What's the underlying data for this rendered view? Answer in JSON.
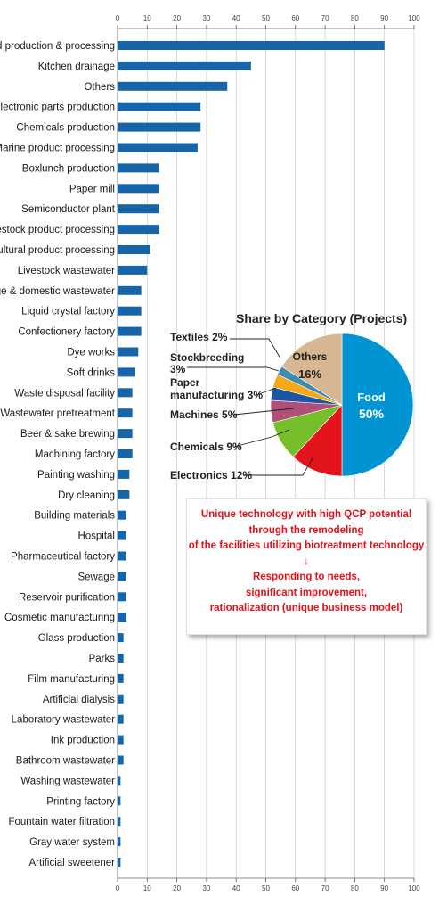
{
  "chart_data": [
    {
      "type": "bar",
      "orientation": "horizontal",
      "title": "",
      "xlabel": "",
      "ylabel": "",
      "xlim": [
        0,
        100
      ],
      "ticks": [
        "0",
        "10",
        "20",
        "30",
        "40",
        "50",
        "60",
        "70",
        "80",
        "90",
        "100"
      ],
      "grid": true,
      "bar_color": "#1565a8",
      "categories": [
        "Food production & processing",
        "Kitchen drainage",
        "Others",
        "Electronic parts production",
        "Chemicals production",
        "Marine product processing",
        "Boxlunch production",
        "Paper mill",
        "Semiconductor plant",
        "Livestock product processing",
        "Agricultural product processing",
        "Livestock wastewater",
        "Sewage & domestic wastewater",
        "Liquid crystal factory",
        "Confectionery factory",
        "Dye works",
        "Soft drinks",
        "Waste disposal facility",
        "Wastewater pretreatment",
        "Beer & sake brewing",
        "Machining factory",
        "Painting washing",
        "Dry cleaning",
        "Building materials",
        "Hospital",
        "Pharmaceutical factory",
        "Sewage",
        "Reservoir purification",
        "Cosmetic manufacturing",
        "Glass production",
        "Parks",
        "Film manufacturing",
        "Artificial dialysis",
        "Laboratory wastewater",
        "Ink production",
        "Bathroom wastewater",
        "Washing wastewater",
        "Printing factory",
        "Fountain water filtration",
        "Gray water system",
        "Artificial sweetener"
      ],
      "values": [
        90,
        45,
        37,
        28,
        28,
        27,
        14,
        14,
        14,
        14,
        11,
        10,
        8,
        8,
        8,
        7,
        6,
        5,
        5,
        5,
        5,
        4,
        4,
        3,
        3,
        3,
        3,
        3,
        3,
        2,
        2,
        2,
        2,
        2,
        2,
        2,
        1,
        1,
        1,
        1,
        1
      ]
    },
    {
      "type": "pie",
      "title": "Share by Category (Projects)",
      "slices": [
        {
          "label": "Food",
          "value": 50,
          "value_label": "50%",
          "color": "#0094d2"
        },
        {
          "label": "Electronics",
          "value": 12,
          "value_label": "12%",
          "color": "#e3141b"
        },
        {
          "label": "Chemicals",
          "value": 9,
          "value_label": "9%",
          "color": "#77be2b"
        },
        {
          "label": "Machines",
          "value": 5,
          "value_label": "5%",
          "color": "#b04f7a"
        },
        {
          "label": "Paper manufacturing",
          "value": 3,
          "value_label": "3%",
          "color": "#1b55a3"
        },
        {
          "label": "Stockbreeding",
          "value": 3,
          "value_label": "3%",
          "color": "#f5a91a"
        },
        {
          "label": "Textiles",
          "value": 2,
          "value_label": "2%",
          "color": "#3e8bb0"
        },
        {
          "label": "Others",
          "value": 16,
          "value_label": "16%",
          "color": "#d7b791"
        }
      ]
    }
  ],
  "labels": {
    "textiles": "Textiles 2%",
    "stockbreeding_1": "Stockbreeding",
    "stockbreeding_2": "3%",
    "paper_1": "Paper",
    "paper_2": "manufacturing 3%",
    "machines": "Machines 5%",
    "chemicals": "Chemicals 9%",
    "electronics": "Electronics 12%",
    "food_name": "Food",
    "food_pct": "50%",
    "others_name": "Others",
    "others_pct": "16%"
  },
  "note": {
    "line1": "Unique technology with high QCP potential",
    "line2": "through the remodeling",
    "line3": "of the facilities utilizing biotreatment technology",
    "arrow": "↓",
    "line4": "Responding to needs,",
    "line5": "significant improvement,",
    "line6": "rationalization (unique business model)"
  }
}
